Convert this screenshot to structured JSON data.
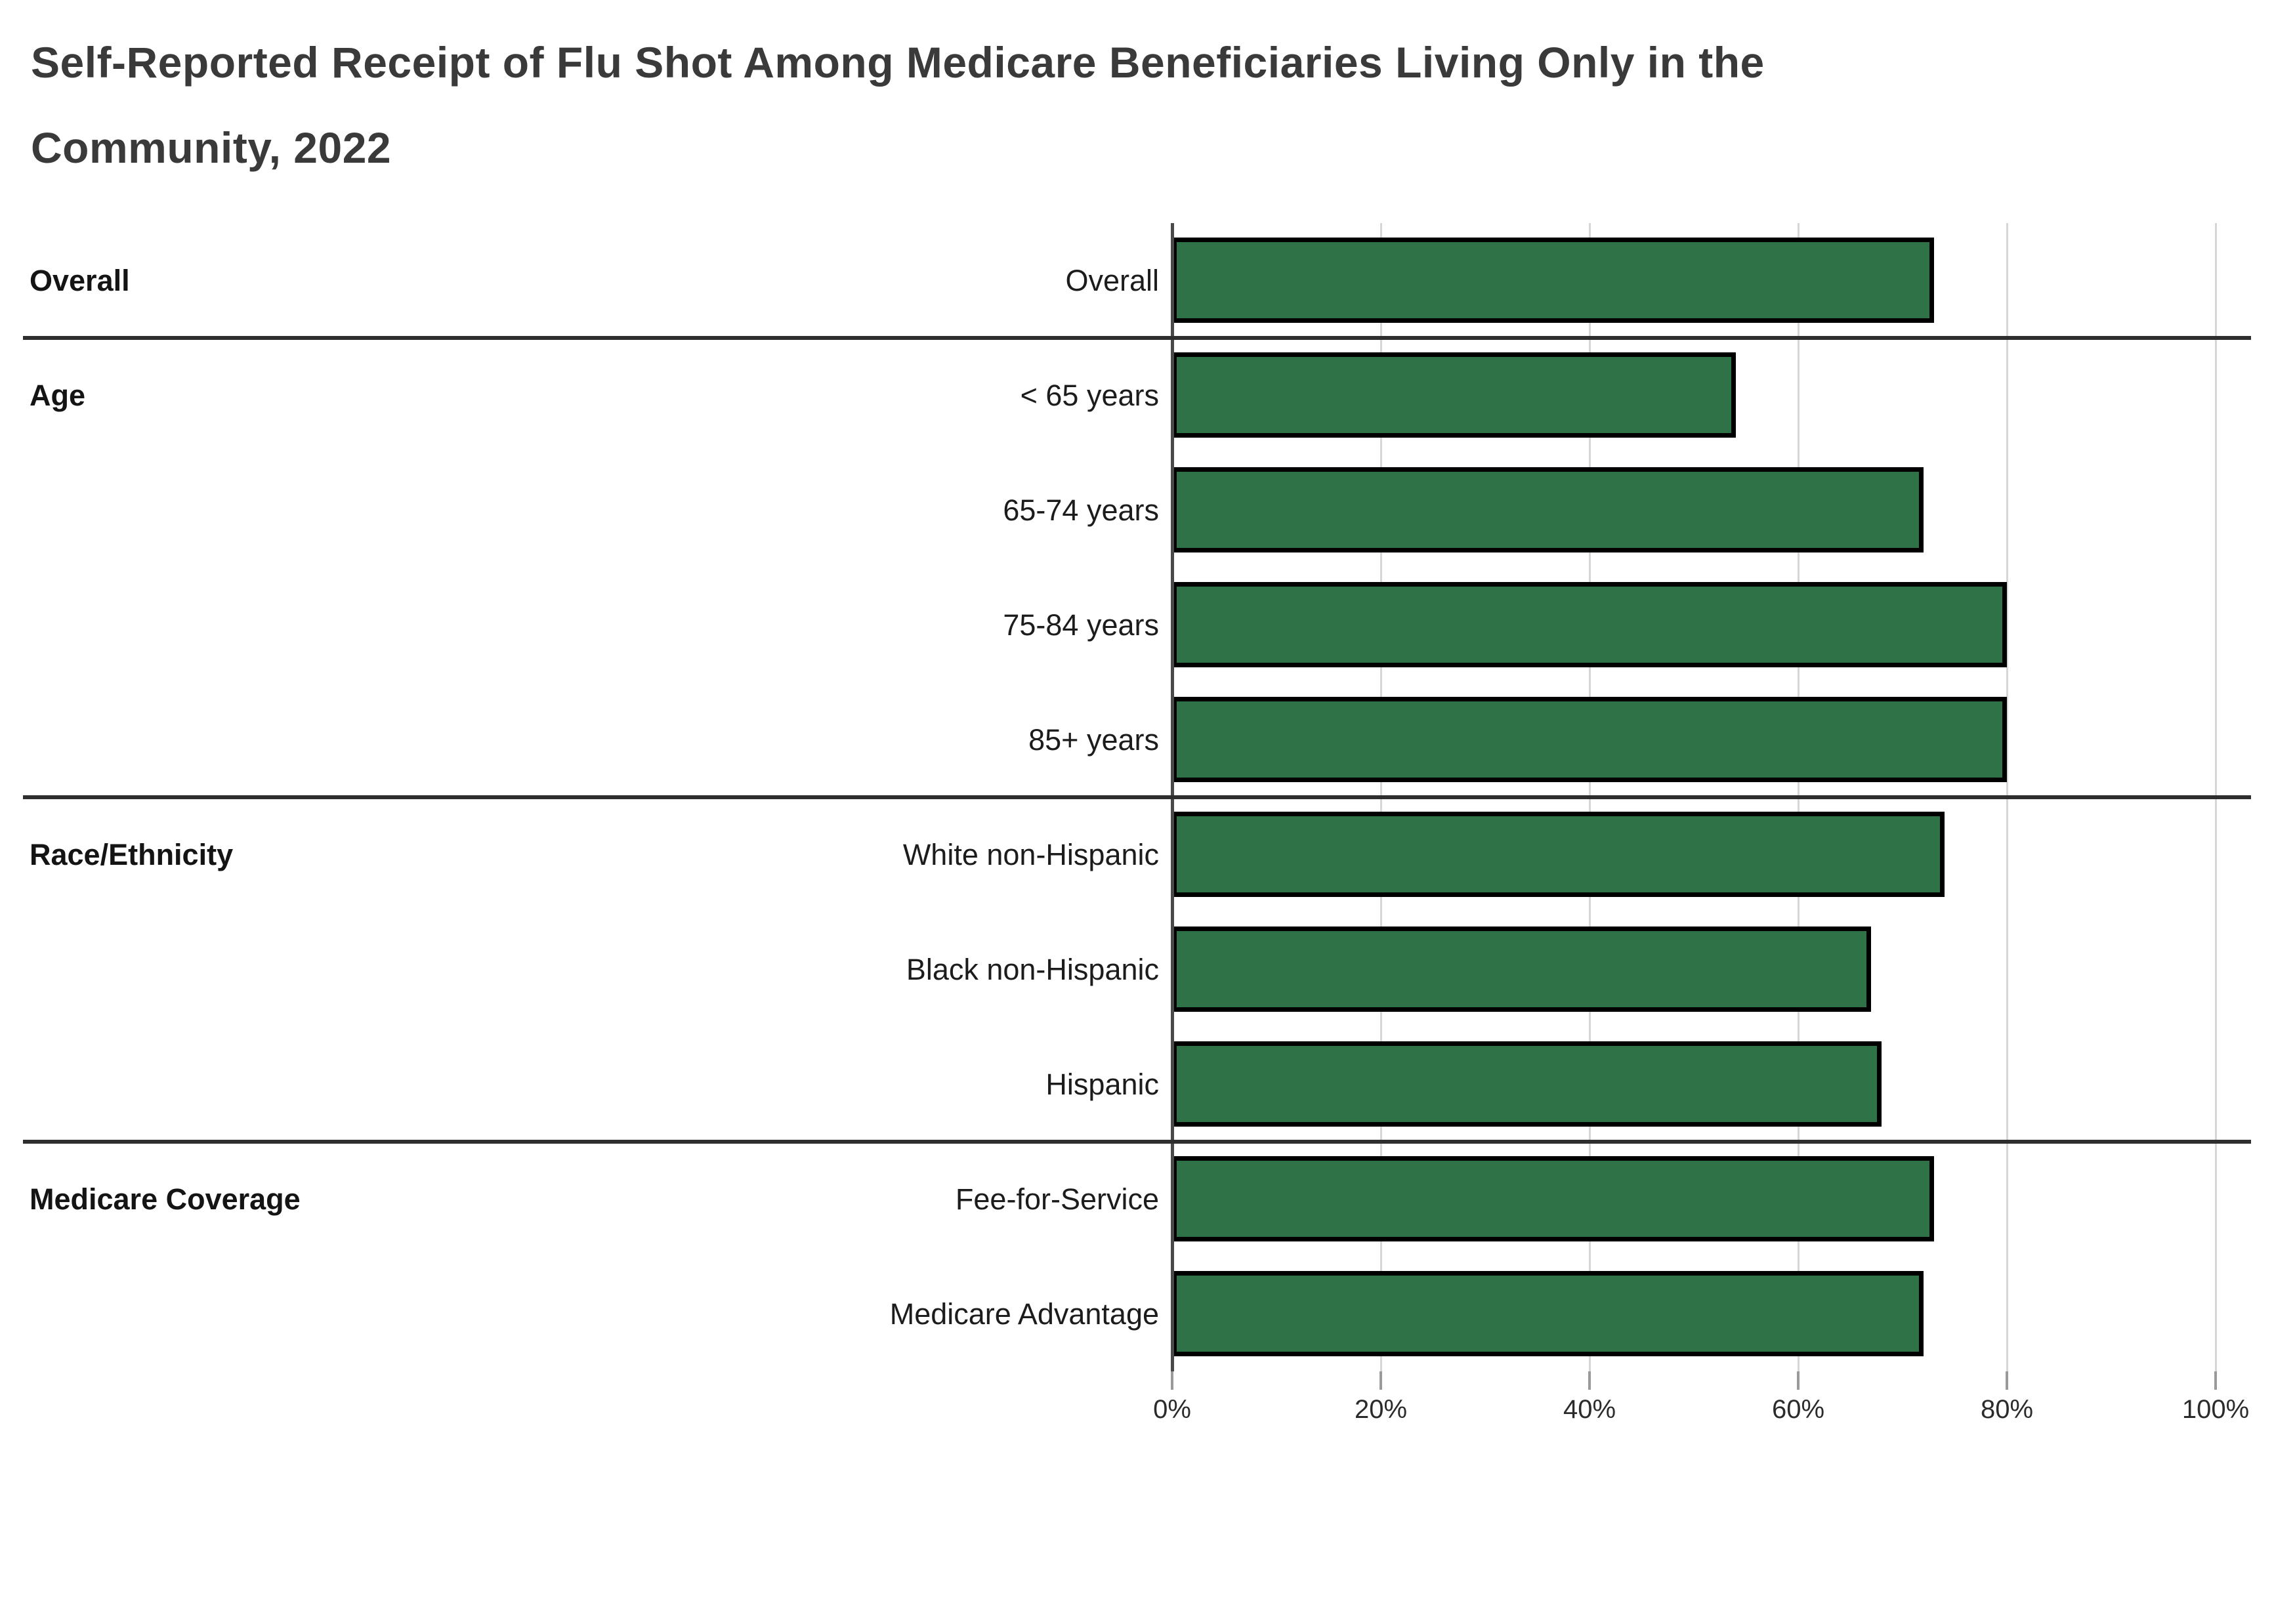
{
  "title_lines": [
    "Self-Reported Receipt of Flu Shot Among Medicare Beneficiaries Living Only in the",
    "Community, 2022"
  ],
  "chart_data": {
    "type": "bar",
    "orientation": "horizontal",
    "title": "Self-Reported Receipt of Flu Shot Among Medicare Beneficiaries Living Only in the Community, 2022",
    "unit": "%",
    "xlabel": "",
    "ylabel": "",
    "x_axis": {
      "min": 0,
      "max": 100,
      "tick_labels": [
        "0%",
        "20%",
        "40%",
        "60%",
        "80%",
        "100%"
      ],
      "grid": true
    },
    "legend": "none",
    "groups": [
      {
        "label": "Overall",
        "rows": [
          {
            "label": "Overall",
            "value": 73
          }
        ]
      },
      {
        "label": "Age",
        "rows": [
          {
            "label": "< 65 years",
            "value": 54
          },
          {
            "label": "65-74 years",
            "value": 72
          },
          {
            "label": "75-84 years",
            "value": 80
          },
          {
            "label": "85+ years",
            "value": 80
          }
        ]
      },
      {
        "label": "Race/Ethnicity",
        "rows": [
          {
            "label": "White non-Hispanic",
            "value": 74
          },
          {
            "label": "Black non-Hispanic",
            "value": 67
          },
          {
            "label": "Hispanic",
            "value": 68
          }
        ]
      },
      {
        "label": "Medicare Coverage",
        "rows": [
          {
            "label": "Fee-for-Service",
            "value": 73
          },
          {
            "label": "Medicare Advantage",
            "value": 72
          }
        ]
      }
    ],
    "colors": {
      "bar_fill": "#2f7248",
      "bar_border": "#000000",
      "gridline": "#d6d6d6",
      "axis_line": "#4a4a4a",
      "tick": "#9a9a9a",
      "divider": "#2e2e2e",
      "title_text": "#3a3a3a",
      "label_text": "#1c1c1c",
      "background": "#ffffff"
    }
  }
}
